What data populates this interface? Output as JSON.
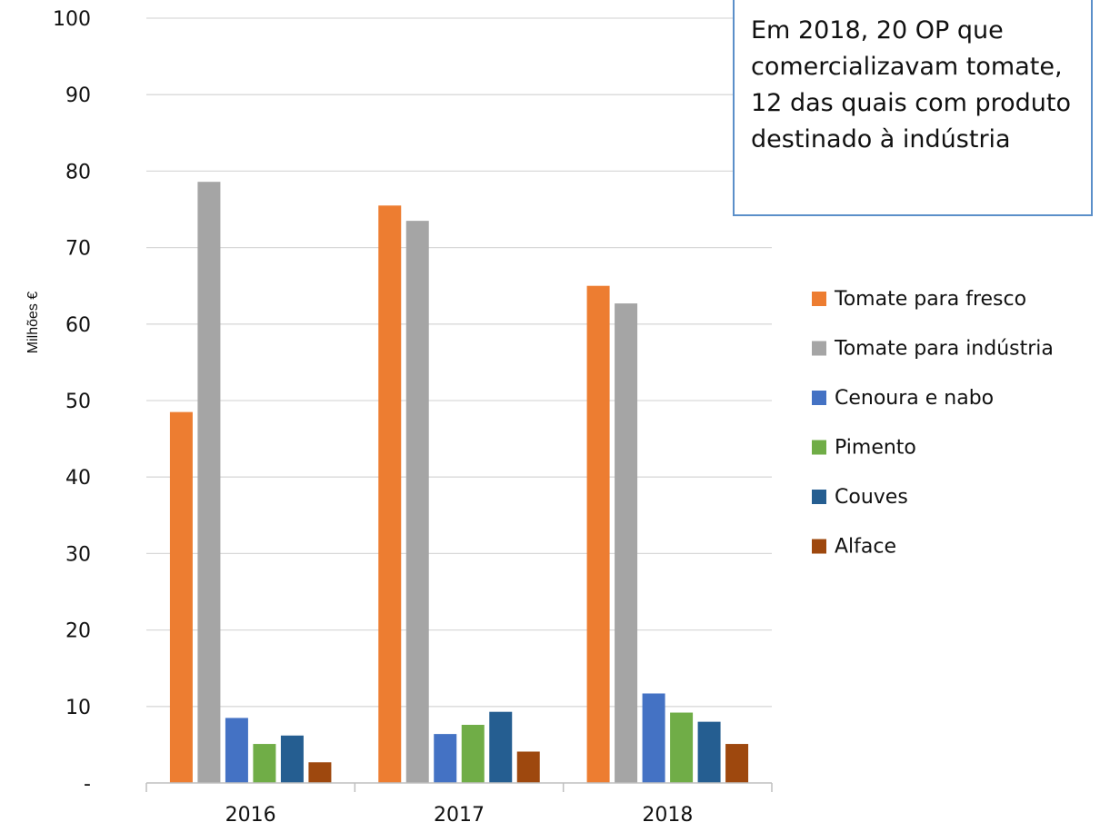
{
  "annotation": {
    "text": "Em 2018, 20 OP que comercializavam tomate, 12 das quais com produto destinado à indústria"
  },
  "chart_data": {
    "type": "bar",
    "title": "",
    "xlabel": "",
    "ylabel": "Milhões €",
    "ylim": [
      0,
      100
    ],
    "yticks": [
      0,
      10,
      20,
      30,
      40,
      50,
      60,
      70,
      80,
      90,
      100
    ],
    "ytick_labels": [
      "-",
      "10",
      "20",
      "30",
      "40",
      "50",
      "60",
      "70",
      "80",
      "90",
      "100"
    ],
    "grid": true,
    "legend_position": "right",
    "categories": [
      "2016",
      "2017",
      "2018"
    ],
    "series": [
      {
        "name": "Tomate para fresco",
        "color": "#ed7d31",
        "values": [
          48.5,
          75.5,
          65.0
        ]
      },
      {
        "name": "Tomate para indústria",
        "color": "#a5a5a5",
        "values": [
          78.6,
          73.5,
          62.7
        ]
      },
      {
        "name": "Cenoura e nabo",
        "color": "#4472c4",
        "values": [
          8.5,
          6.4,
          11.7
        ]
      },
      {
        "name": "Pimento",
        "color": "#70ad47",
        "values": [
          5.1,
          7.6,
          9.2
        ]
      },
      {
        "name": "Couves",
        "color": "#255e91",
        "values": [
          6.2,
          9.3,
          8.0
        ]
      },
      {
        "name": "Alface",
        "color": "#9e480e",
        "values": [
          2.7,
          4.1,
          5.1
        ]
      }
    ]
  }
}
